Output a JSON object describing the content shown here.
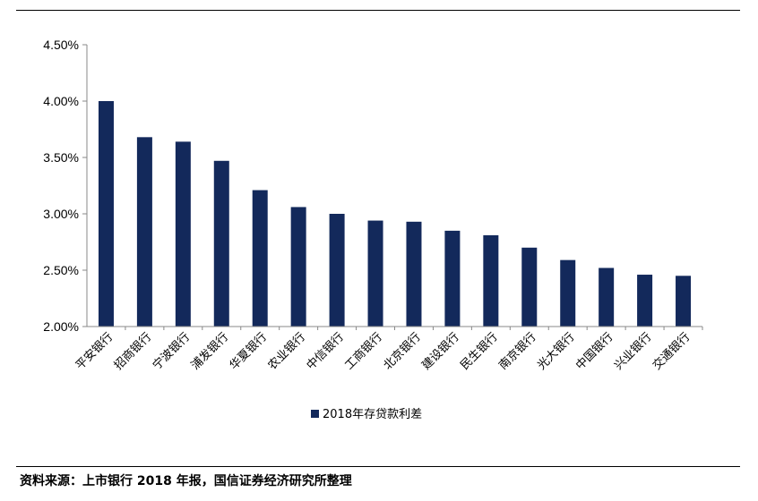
{
  "chart_data": {
    "type": "bar",
    "categories": [
      "平安银行",
      "招商银行",
      "宁波银行",
      "浦发银行",
      "华夏银行",
      "农业银行",
      "中信银行",
      "工商银行",
      "北京银行",
      "建设银行",
      "民生银行",
      "南京银行",
      "光大银行",
      "中国银行",
      "兴业银行",
      "交通银行"
    ],
    "series": [
      {
        "name": "2018年存贷款利差",
        "values": [
          4.0,
          3.68,
          3.64,
          3.47,
          3.21,
          3.06,
          3.0,
          2.94,
          2.93,
          2.85,
          2.81,
          2.7,
          2.59,
          2.52,
          2.46,
          2.45
        ]
      }
    ],
    "ylim": [
      2.0,
      4.5
    ],
    "yticks": [
      "2.00%",
      "2.50%",
      "3.00%",
      "3.50%",
      "4.00%",
      "4.50%"
    ],
    "ytick_values": [
      2.0,
      2.5,
      3.0,
      3.5,
      4.0,
      4.5
    ],
    "grid": false,
    "legend_position": "bottom",
    "colors": {
      "bar": "#13295b",
      "axis": "#888888"
    },
    "title": "",
    "xlabel": "",
    "ylabel": ""
  },
  "footer": {
    "source": "资料来源：上市银行 2018 年报，国信证券经济研究所整理"
  }
}
